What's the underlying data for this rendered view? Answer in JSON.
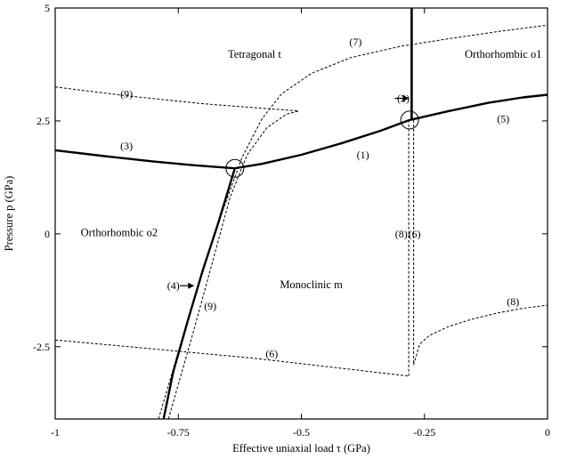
{
  "chart_data": {
    "type": "line",
    "title": "",
    "xlabel": "Effective uniaxial load τ (GPa)",
    "ylabel": "Pressure p (GPa)",
    "xlim": [
      -1,
      0
    ],
    "ylim": [
      -4.1,
      5
    ],
    "x_ticks": [
      {
        "value": -1,
        "label": "-1"
      },
      {
        "value": -0.75,
        "label": "-0.75"
      },
      {
        "value": -0.5,
        "label": "-0.5"
      },
      {
        "value": -0.25,
        "label": "-0.25"
      },
      {
        "value": 0,
        "label": "0"
      }
    ],
    "y_ticks": [
      {
        "value": 5,
        "label": "5"
      },
      {
        "value": 2.5,
        "label": "2.5"
      },
      {
        "value": 0,
        "label": "0"
      },
      {
        "value": -2.5,
        "label": "-2.5"
      }
    ],
    "grid": false,
    "legend": "none",
    "region_labels": [
      {
        "text": "Tetragonal t",
        "x": -0.595,
        "y": 3.9
      },
      {
        "text": "Orthorhombic o1",
        "x": -0.09,
        "y": 3.9
      },
      {
        "text": "Orthorhombic o2",
        "x": -0.87,
        "y": -0.05
      },
      {
        "text": "Monoclinic m",
        "x": -0.48,
        "y": -1.2
      }
    ],
    "series": [
      {
        "id": "1",
        "style": "solid",
        "width": 2.4,
        "x": [
          -0.635,
          -0.58,
          -0.5,
          -0.42,
          -0.34,
          -0.28
        ],
        "y": [
          1.45,
          1.55,
          1.75,
          2.0,
          2.28,
          2.52
        ]
      },
      {
        "id": "3",
        "style": "solid",
        "width": 2.4,
        "x": [
          -1.0,
          -0.9,
          -0.8,
          -0.72,
          -0.635
        ],
        "y": [
          1.85,
          1.72,
          1.6,
          1.52,
          1.45
        ]
      },
      {
        "id": "5",
        "style": "solid",
        "width": 2.4,
        "x": [
          -0.28,
          -0.2,
          -0.12,
          -0.05,
          0.0
        ],
        "y": [
          2.52,
          2.72,
          2.9,
          3.02,
          3.08
        ]
      },
      {
        "id": "2",
        "style": "solid",
        "width": 2.6,
        "x": [
          -0.276,
          -0.276
        ],
        "y": [
          2.52,
          5.0
        ]
      },
      {
        "id": "4",
        "style": "solid",
        "width": 2.4,
        "x": [
          -0.635,
          -0.67,
          -0.7,
          -0.73,
          -0.76,
          -0.78
        ],
        "y": [
          1.45,
          0.2,
          -0.8,
          -1.9,
          -3.05,
          -4.1
        ]
      },
      {
        "id": "7",
        "style": "dashed",
        "width": 1,
        "x": [
          -0.79,
          -0.72,
          -0.66,
          -0.62,
          -0.58,
          -0.54,
          -0.48,
          -0.4,
          -0.3,
          -0.2,
          -0.1,
          0.0
        ],
        "y": [
          -4.1,
          -1.5,
          0.5,
          1.7,
          2.55,
          3.1,
          3.55,
          3.9,
          4.15,
          4.32,
          4.48,
          4.62
        ]
      },
      {
        "id": "9",
        "style": "dashed",
        "width": 1,
        "x": [
          -0.77,
          -0.72,
          -0.68,
          -0.645,
          -0.61,
          -0.57,
          -0.53,
          -0.505
        ],
        "y": [
          -4.1,
          -2.2,
          -0.6,
          0.8,
          1.75,
          2.35,
          2.65,
          2.72
        ]
      },
      {
        "id": "9",
        "style": "dashed",
        "width": 1,
        "x": [
          -1.0,
          -0.85,
          -0.7,
          -0.505
        ],
        "y": [
          3.25,
          3.05,
          2.88,
          2.72
        ]
      },
      {
        "id": "6",
        "style": "dashed",
        "width": 1,
        "x": [
          -1.0,
          -0.8,
          -0.6,
          -0.4,
          -0.282
        ],
        "y": [
          -2.35,
          -2.55,
          -2.75,
          -3.0,
          -3.15
        ]
      },
      {
        "id": "6",
        "style": "dashed",
        "width": 1,
        "x": [
          -0.282,
          -0.282
        ],
        "y": [
          -3.15,
          2.52
        ]
      },
      {
        "id": "8",
        "style": "dashed",
        "width": 1,
        "x": [
          -0.272,
          -0.272
        ],
        "y": [
          2.52,
          -2.9
        ]
      },
      {
        "id": "8",
        "style": "dashed",
        "width": 1,
        "x": [
          -0.272,
          -0.26,
          -0.24,
          -0.2,
          -0.15,
          -0.1,
          -0.05,
          0.0
        ],
        "y": [
          -2.9,
          -2.45,
          -2.25,
          -2.05,
          -1.88,
          -1.75,
          -1.65,
          -1.58
        ]
      }
    ],
    "curve_labels": [
      {
        "text": "(1)",
        "x": -0.375,
        "y": 1.75
      },
      {
        "text": "(2)",
        "x": -0.293,
        "y": 3.0
      },
      {
        "text": "(3)",
        "x": -0.855,
        "y": 1.95
      },
      {
        "text": "(4)",
        "x": -0.76,
        "y": -1.15
      },
      {
        "text": "(5)",
        "x": -0.09,
        "y": 2.55
      },
      {
        "text": "(6)",
        "x": -0.27,
        "y": 0.0
      },
      {
        "text": "(6)",
        "x": -0.56,
        "y": -2.65
      },
      {
        "text": "(7)",
        "x": -0.39,
        "y": 4.25
      },
      {
        "text": "(8)",
        "x": -0.297,
        "y": 0.0
      },
      {
        "text": "(8)",
        "x": -0.07,
        "y": -1.5
      },
      {
        "text": "(9)",
        "x": -0.855,
        "y": 3.1
      },
      {
        "text": "(9)",
        "x": -0.685,
        "y": -1.6
      }
    ],
    "arrows": [
      {
        "id": "2",
        "x": -0.276,
        "y": 3.0
      },
      {
        "id": "4",
        "x": -0.712,
        "y": -1.15
      }
    ],
    "markers": [
      {
        "shape": "circle",
        "x": -0.635,
        "y": 1.45
      },
      {
        "shape": "circle",
        "x": -0.28,
        "y": 2.52
      }
    ]
  }
}
